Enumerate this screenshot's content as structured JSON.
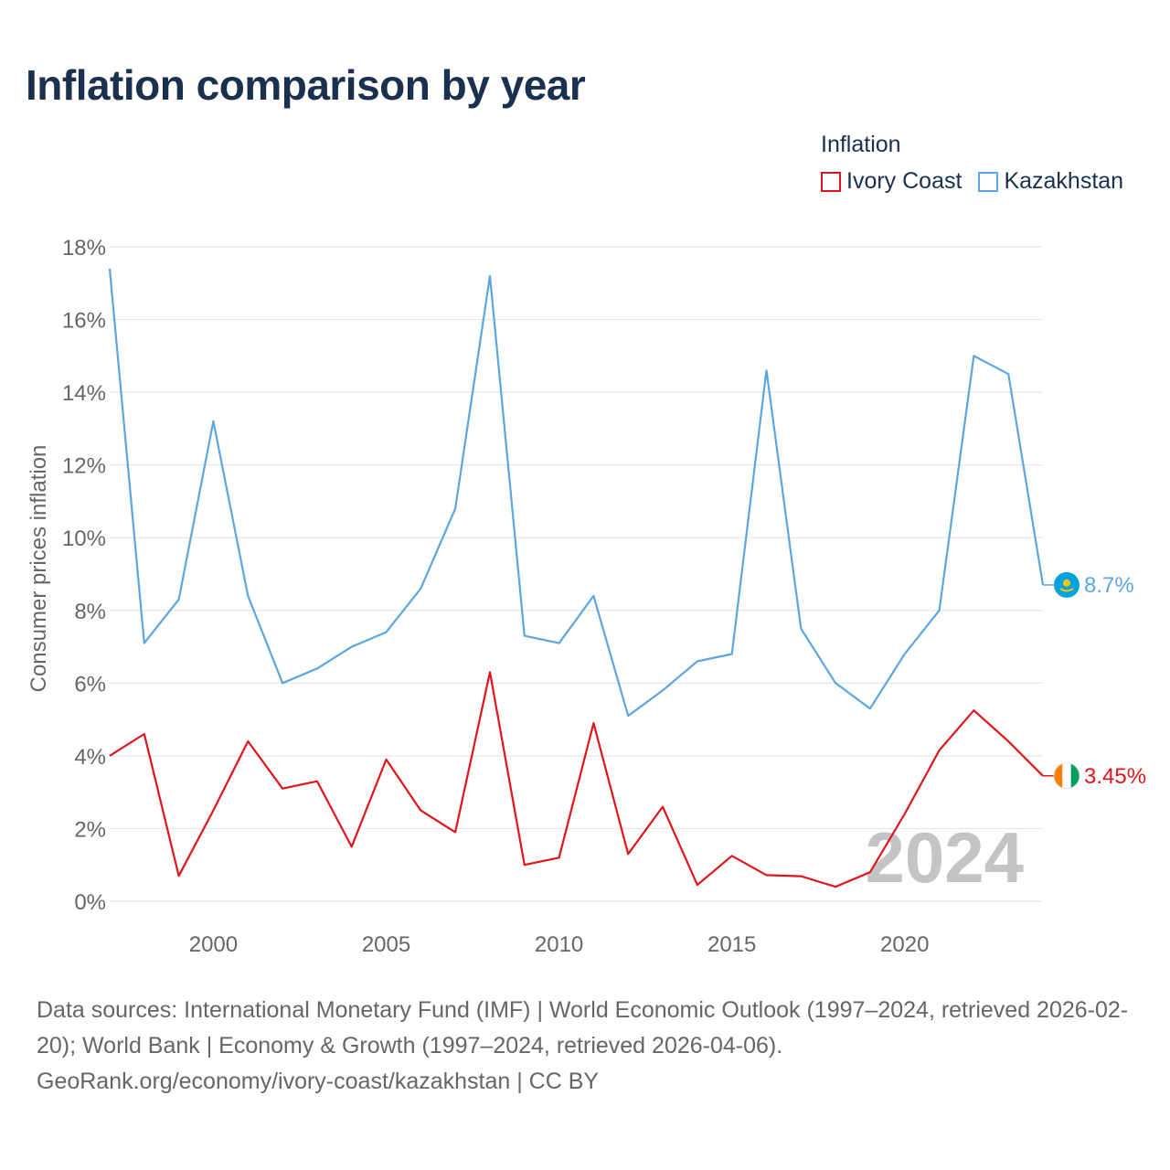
{
  "chart_data": {
    "type": "line",
    "title": "Inflation comparison by year",
    "legend_title": "Inflation",
    "ylabel": "Consumer prices inflation",
    "xlabel": "",
    "ylim": [
      0,
      18
    ],
    "xlim": [
      1997,
      2024
    ],
    "y_ticks": [
      0,
      2,
      4,
      6,
      8,
      10,
      12,
      14,
      16,
      18
    ],
    "y_tick_labels": [
      "0%",
      "2%",
      "4%",
      "6%",
      "8%",
      "10%",
      "12%",
      "14%",
      "16%",
      "18%"
    ],
    "x_ticks": [
      2000,
      2005,
      2010,
      2015,
      2020
    ],
    "x_tick_labels": [
      "2000",
      "2005",
      "2010",
      "2015",
      "2020"
    ],
    "x": [
      1997,
      1998,
      1999,
      2000,
      2001,
      2002,
      2003,
      2004,
      2005,
      2006,
      2007,
      2008,
      2009,
      2010,
      2011,
      2012,
      2013,
      2014,
      2015,
      2016,
      2017,
      2018,
      2019,
      2020,
      2021,
      2022,
      2023,
      2024
    ],
    "series": [
      {
        "name": "Ivory Coast",
        "color": "#e0151b",
        "end_label": "3.45%",
        "values": [
          4.0,
          4.6,
          0.7,
          2.5,
          4.4,
          3.1,
          3.3,
          1.5,
          3.9,
          2.5,
          1.9,
          6.3,
          1.0,
          1.2,
          4.9,
          1.3,
          2.6,
          0.45,
          1.25,
          0.72,
          0.69,
          0.4,
          0.8,
          2.4,
          4.15,
          5.25,
          4.4,
          3.45
        ]
      },
      {
        "name": "Kazakhstan",
        "color": "#5ba6e1",
        "end_label": "8.7%",
        "values": [
          17.4,
          7.1,
          8.3,
          13.2,
          8.4,
          6.0,
          6.4,
          7.0,
          7.4,
          8.6,
          10.8,
          17.2,
          7.3,
          7.1,
          8.4,
          5.1,
          5.8,
          6.6,
          6.8,
          14.6,
          7.5,
          6.0,
          5.3,
          6.8,
          8.0,
          15.0,
          14.5,
          8.7
        ]
      }
    ],
    "year_watermark": "2024"
  },
  "footer": {
    "line1": "Data sources: International Monetary Fund (IMF) | World Economic Outlook (1997–2024, retrieved 2026-02-20); World Bank | Economy & Growth (1997–2024, retrieved 2026-04-06).",
    "line2": "GeoRank.org/economy/ivory-coast/kazakhstan | CC BY"
  },
  "colors": {
    "title": "#1b2f4e",
    "grid": "#e6e6e6",
    "axis_text": "#666666",
    "watermark": "#c4c4c4"
  },
  "icons": {
    "kazakhstan_marker": "kazakhstan-flag-icon",
    "ivory_coast_marker": "ivory-coast-flag-icon"
  }
}
